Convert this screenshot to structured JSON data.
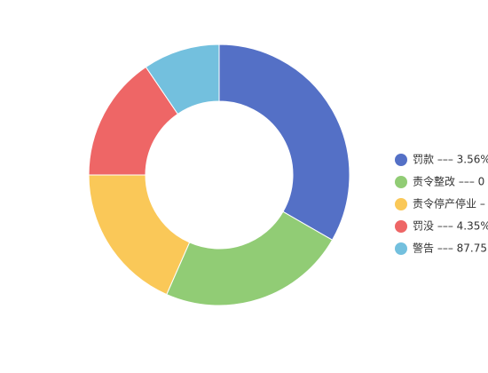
{
  "chart_data": {
    "type": "pie",
    "categories": [
      "罚款 ––– 3.56%",
      "责令整改 ––– 0",
      "责令停产停业 –",
      "罚没 ––– 4.35%",
      "警告 ––– 87.75"
    ],
    "values": [
      33.3,
      23.3,
      18.4,
      15.5,
      9.5
    ],
    "colors": [
      "#5470c6",
      "#91cc75",
      "#fac858",
      "#ee6666",
      "#73c0de"
    ],
    "legend": "right"
  }
}
